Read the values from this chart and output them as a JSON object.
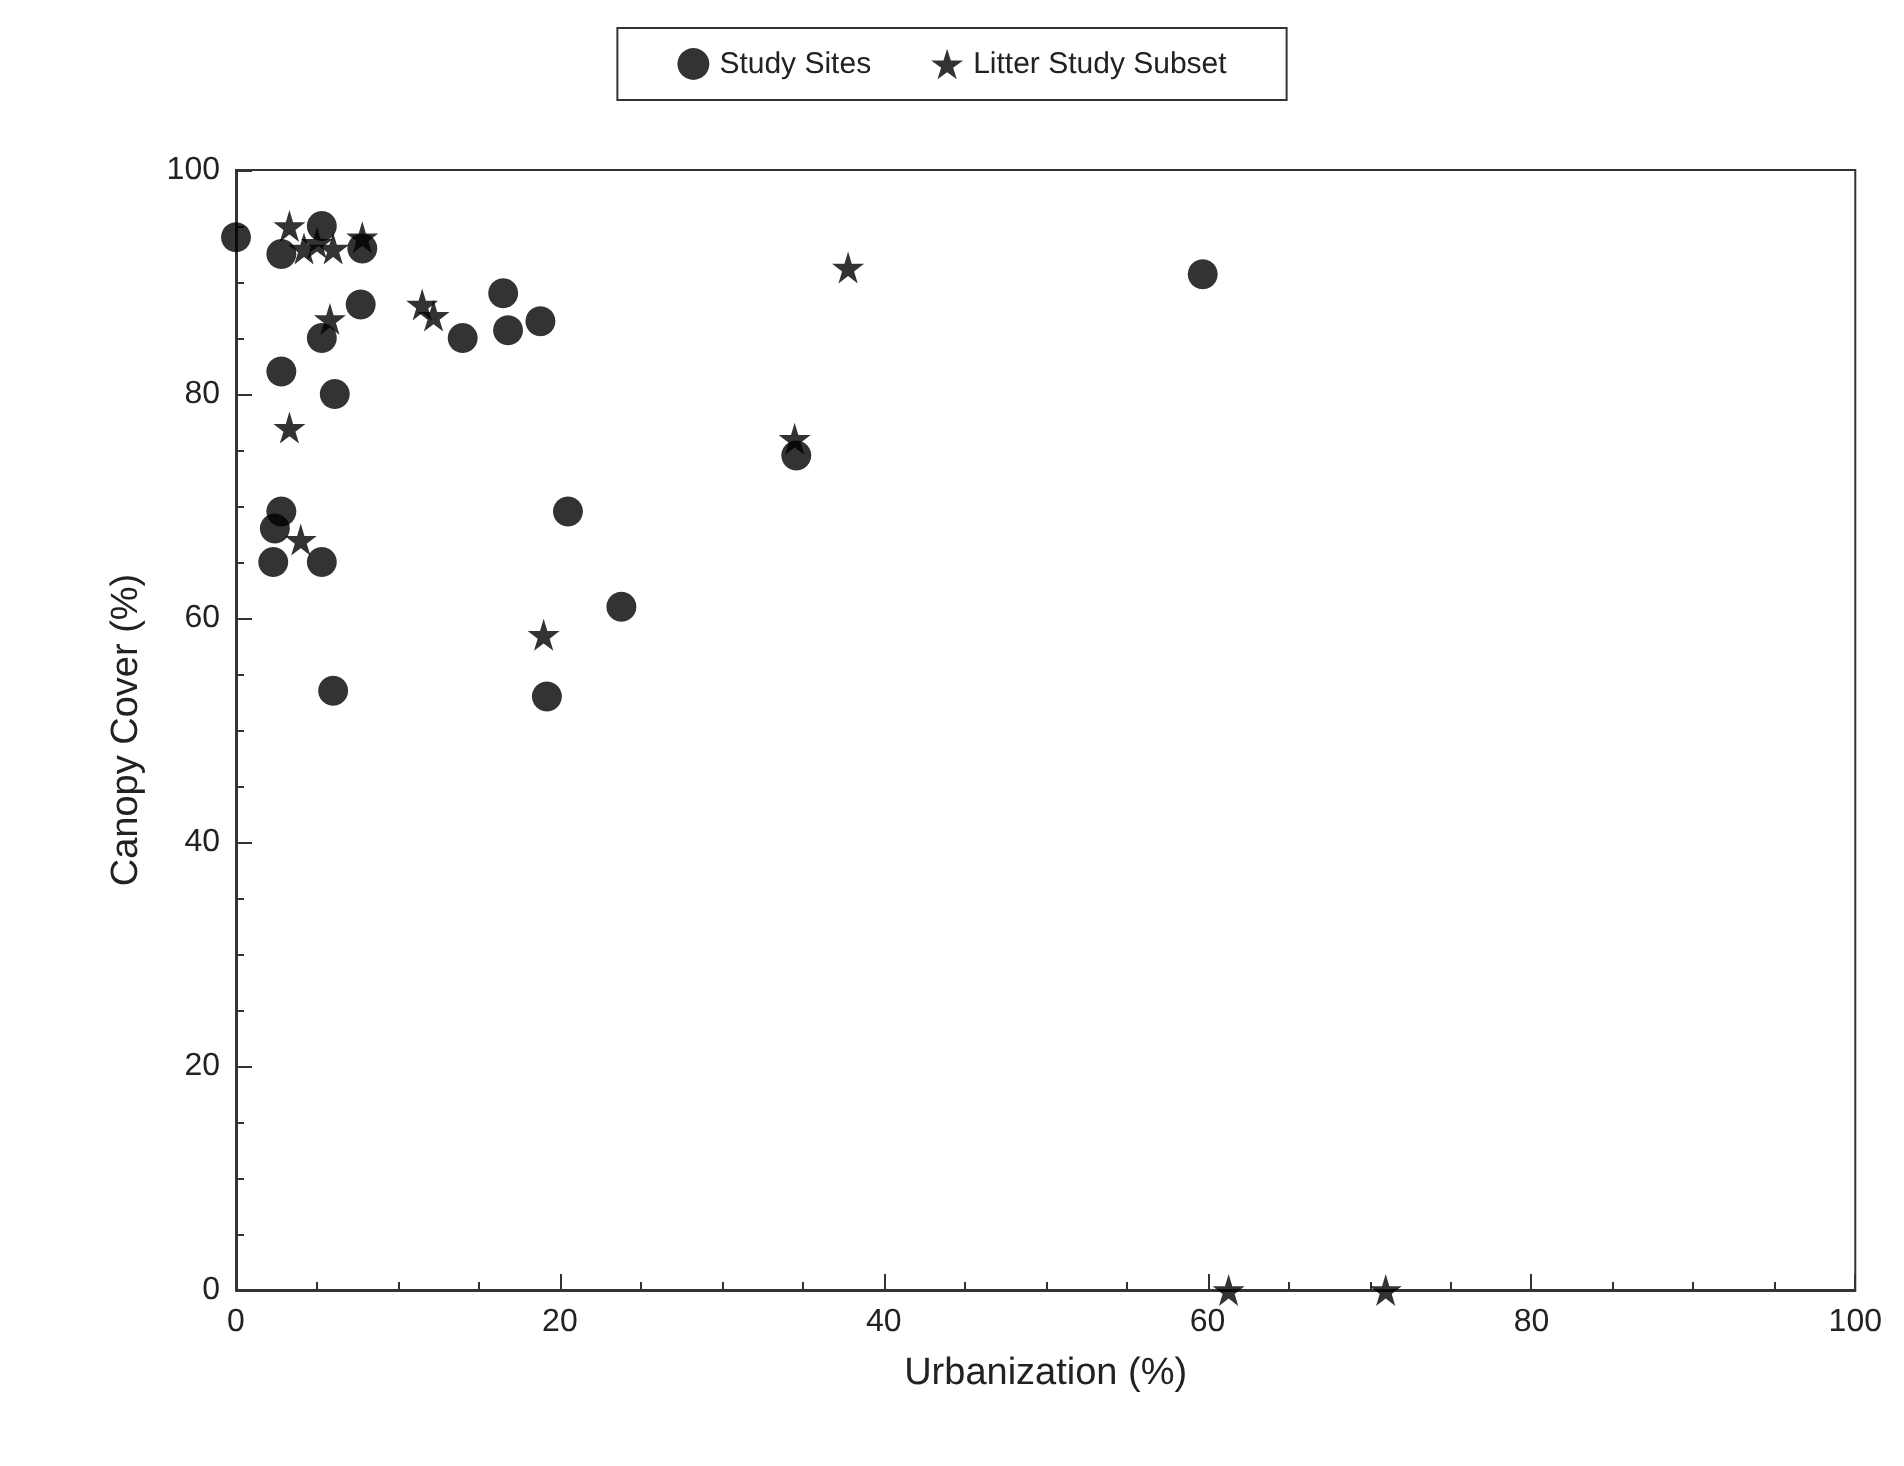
{
  "chart_data": {
    "type": "scatter",
    "xlabel": "Urbanization (%)",
    "ylabel": "Canopy Cover (%)",
    "xlim": [
      0,
      100
    ],
    "ylim": [
      0,
      100
    ],
    "xticks": [
      0,
      20,
      40,
      60,
      80,
      100
    ],
    "yticks": [
      0,
      20,
      40,
      60,
      80,
      100
    ],
    "grid": false,
    "legend": "top",
    "series": [
      {
        "name": "Study Sites",
        "color": "#000000",
        "marker": "circle",
        "x": [
          0,
          2.8,
          4.5,
          5.3,
          6,
          7.3,
          7.8,
          2.8,
          5.3,
          6.1,
          7.7,
          2.4,
          2.8,
          2.3,
          5.3,
          6,
          14,
          16.5,
          16.8,
          18.8,
          20.5,
          23.8,
          19.2,
          34.6,
          59.7
        ],
        "values": [
          94,
          92.5,
          null,
          95,
          null,
          null,
          93,
          82,
          85,
          80,
          88,
          68,
          69.5,
          65,
          65,
          53.5,
          85,
          89,
          85.7,
          86.5,
          69.5,
          61,
          53,
          74.5,
          90.7
        ]
      },
      {
        "name": "Litter Study Subset",
        "color": "#000000",
        "marker": "star",
        "x": [
          3.3,
          4.2,
          5,
          6,
          7.8,
          5.8,
          3.3,
          4,
          11.5,
          12.2,
          19,
          34.5,
          37.8,
          61.3,
          71
        ],
        "values": [
          95,
          93,
          93.5,
          93,
          94,
          86.7,
          77,
          67,
          88,
          87,
          58.5,
          76,
          91.3,
          0,
          0
        ]
      }
    ]
  }
}
